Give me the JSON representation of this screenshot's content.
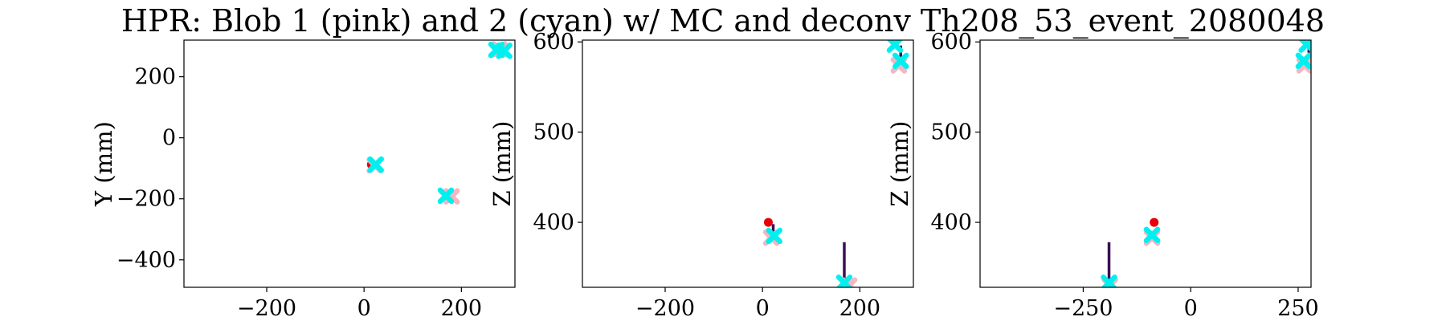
{
  "title": "HPR: Blob 1 (pink) and 2 (cyan) w/ MC and deconv Th208_53_event_2080048",
  "colors": {
    "blob1": "#f4b6c2",
    "blob2": "#00f0f0",
    "mc_point": "#e8000b",
    "track": "#3b0f55",
    "axes": "#000000"
  },
  "chart_data": [
    {
      "type": "scatter",
      "xlabel": "",
      "ylabel": "Y (mm)",
      "xlim": [
        -370,
        310
      ],
      "ylim": [
        -490,
        320
      ],
      "xticks": [
        {
          "v": -200,
          "label": "−200"
        },
        {
          "v": 0,
          "label": "0"
        },
        {
          "v": 200,
          "label": "200"
        }
      ],
      "yticks": [
        {
          "v": -400,
          "label": "−400"
        },
        {
          "v": -200,
          "label": "−200"
        },
        {
          "v": 0,
          "label": "0"
        },
        {
          "v": 200,
          "label": "200"
        }
      ],
      "tracks": [],
      "mc_points": [
        {
          "x": 15,
          "y": -88
        }
      ],
      "blob1": [
        {
          "x": 278,
          "y": 290
        },
        {
          "x": 22,
          "y": -90
        },
        {
          "x": 180,
          "y": -192
        }
      ],
      "blob2": [
        {
          "x": 288,
          "y": 285
        },
        {
          "x": 272,
          "y": 288
        },
        {
          "x": 24,
          "y": -88
        },
        {
          "x": 168,
          "y": -190
        }
      ]
    },
    {
      "type": "scatter",
      "xlabel": "",
      "ylabel": "Z (mm)",
      "xlim": [
        -370,
        310
      ],
      "ylim": [
        328,
        602
      ],
      "xticks": [
        {
          "v": -200,
          "label": "−200"
        },
        {
          "v": 0,
          "label": "0"
        },
        {
          "v": 200,
          "label": "200"
        }
      ],
      "yticks": [
        {
          "v": 400,
          "label": "400"
        },
        {
          "v": 500,
          "label": "500"
        },
        {
          "v": 600,
          "label": "600"
        }
      ],
      "tracks": [
        {
          "x": 168,
          "y0": 378,
          "y1": 332
        },
        {
          "x": 284,
          "y0": 596,
          "y1": 580
        },
        {
          "x": 22,
          "y0": 398,
          "y1": 386
        }
      ],
      "mc_points": [
        {
          "x": 12,
          "y": 400
        }
      ],
      "blob1": [
        {
          "x": 18,
          "y": 383
        },
        {
          "x": 178,
          "y": 330
        },
        {
          "x": 280,
          "y": 574
        }
      ],
      "blob2": [
        {
          "x": 24,
          "y": 385
        },
        {
          "x": 168,
          "y": 333
        },
        {
          "x": 272,
          "y": 597
        },
        {
          "x": 284,
          "y": 579
        }
      ]
    },
    {
      "type": "scatter",
      "xlabel": "",
      "ylabel": "Z (mm)",
      "xlim": [
        -490,
        280
      ],
      "ylim": [
        328,
        602
      ],
      "xticks": [
        {
          "v": -250,
          "label": "−250"
        },
        {
          "v": 0,
          "label": "0"
        },
        {
          "v": 250,
          "label": "250"
        }
      ],
      "yticks": [
        {
          "v": 400,
          "label": "400"
        },
        {
          "v": 500,
          "label": "500"
        },
        {
          "v": 600,
          "label": "600"
        }
      ],
      "tracks": [
        {
          "x": -190,
          "y0": 378,
          "y1": 332
        },
        {
          "x": 275,
          "y0": 596,
          "y1": 588
        }
      ],
      "mc_points": [
        {
          "x": -85,
          "y": 400
        }
      ],
      "blob1": [
        {
          "x": -90,
          "y": 383
        },
        {
          "x": -188,
          "y": 330
        },
        {
          "x": 265,
          "y": 574
        }
      ],
      "blob2": [
        {
          "x": -90,
          "y": 386
        },
        {
          "x": -190,
          "y": 333
        },
        {
          "x": 270,
          "y": 597
        },
        {
          "x": 263,
          "y": 579
        }
      ]
    }
  ]
}
